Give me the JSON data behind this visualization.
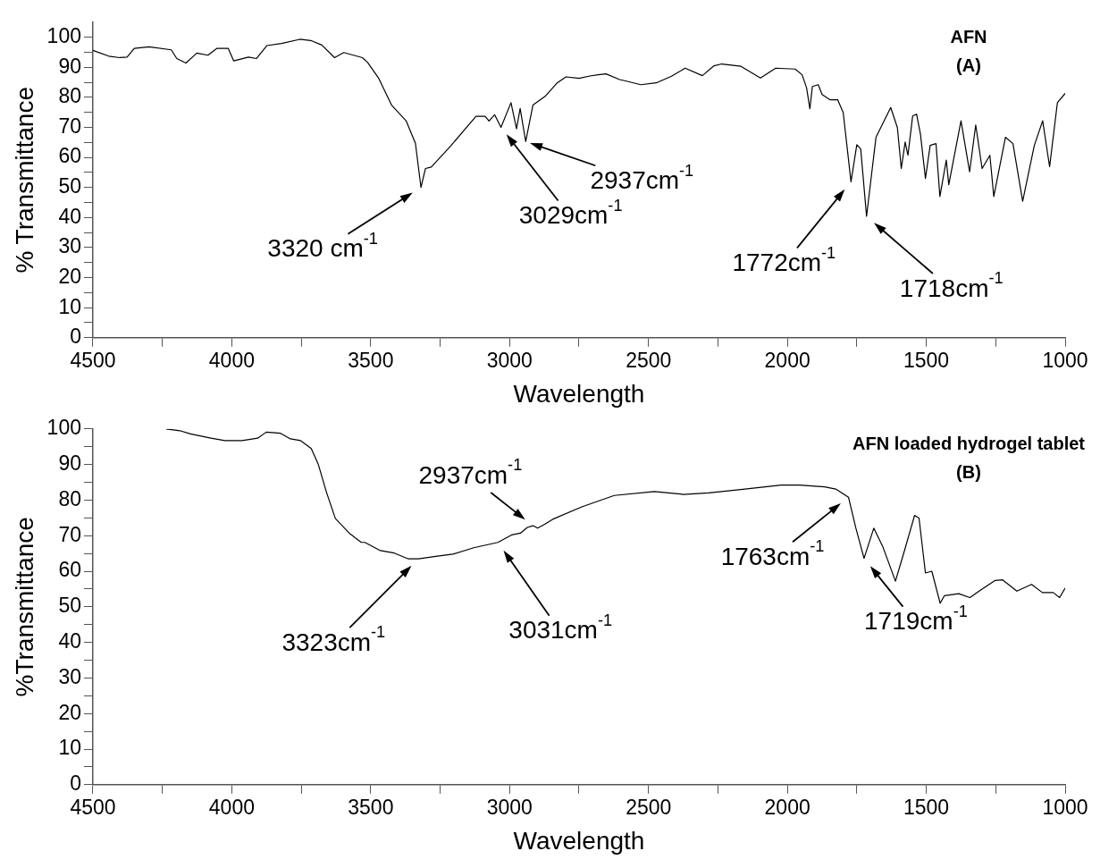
{
  "chart_data": [
    {
      "type": "line",
      "title": "AFN",
      "subtitle": "(A)",
      "xlabel": "Wavelength",
      "ylabel": "% Transmittance",
      "marker": "none",
      "line_style": "solid",
      "grid": false,
      "xlim": [
        4500,
        1000
      ],
      "xticks": [
        4500,
        {
          "value": 4250,
          "label": null
        },
        4000,
        {
          "value": 3750,
          "label": null
        },
        3500,
        {
          "value": 3250,
          "label": null
        },
        3000,
        {
          "value": 2750,
          "label": null
        },
        2500,
        {
          "value": 2250,
          "label": null
        },
        2000,
        {
          "value": 1750,
          "label": null
        },
        1500,
        {
          "value": 1250,
          "label": null
        },
        1000
      ],
      "ylim": [
        0,
        105
      ],
      "yticks": [
        0,
        {
          "value": 5,
          "label": null
        },
        10,
        {
          "value": 15,
          "label": null
        },
        20,
        {
          "value": 25,
          "label": null
        },
        30,
        {
          "value": 35,
          "label": null
        },
        40,
        {
          "value": 45,
          "label": null
        },
        50,
        {
          "value": 55,
          "label": null
        },
        60,
        {
          "value": 65,
          "label": null
        },
        70,
        {
          "value": 75,
          "label": null
        },
        80,
        {
          "value": 85,
          "label": null
        },
        90,
        {
          "value": 95,
          "label": null
        },
        100
      ],
      "series": [
        {
          "type": "line",
          "color": "#000000",
          "x": [
            4500,
            4443,
            4403,
            4377,
            4351,
            4298,
            4218,
            4198,
            4165,
            4126,
            4086,
            4053,
            4013,
            3993,
            3940,
            3911,
            3874,
            3821,
            3755,
            3716,
            3676,
            3630,
            3597,
            3530,
            3511,
            3471,
            3425,
            3372,
            3339,
            3319,
            3303,
            3282,
            3213,
            3121,
            3088,
            3074,
            3054,
            3031,
            2995,
            2975,
            2962,
            2942,
            2916,
            2870,
            2830,
            2797,
            2750,
            2711,
            2681,
            2653,
            2604,
            2576,
            2528,
            2472,
            2417,
            2368,
            2306,
            2264,
            2236,
            2167,
            2097,
            2042,
            1972,
            1947,
            1931,
            1919,
            1910,
            1889,
            1875,
            1847,
            1819,
            1799,
            1771,
            1750,
            1736,
            1715,
            1681,
            1628,
            1604,
            1590,
            1576,
            1566,
            1549,
            1535,
            1521,
            1503,
            1486,
            1465,
            1451,
            1428,
            1419,
            1375,
            1344,
            1322,
            1299,
            1271,
            1257,
            1215,
            1188,
            1153,
            1111,
            1081,
            1056,
            1028,
            1000
          ],
          "values": [
            95.6,
            93.7,
            93.2,
            93.4,
            96.3,
            96.8,
            95.8,
            92.9,
            91.4,
            94.7,
            94.0,
            96.3,
            96.3,
            92.1,
            93.4,
            92.9,
            97.2,
            97.9,
            99.3,
            98.9,
            97.4,
            93.2,
            94.9,
            93.2,
            91.6,
            86.3,
            77.4,
            72.1,
            64.7,
            50.0,
            56.3,
            56.8,
            63.7,
            73.7,
            73.7,
            72.1,
            74.2,
            70.0,
            78.2,
            69.5,
            76.3,
            65.3,
            77.4,
            80.5,
            84.7,
            86.8,
            86.3,
            87.1,
            87.5,
            87.8,
            85.9,
            85.3,
            84.2,
            84.8,
            87.0,
            89.7,
            87.2,
            90.5,
            91.1,
            90.3,
            86.4,
            89.7,
            89.4,
            87.5,
            83.2,
            76.2,
            83.6,
            84.2,
            80.9,
            79.2,
            79.2,
            74.9,
            51.9,
            64.2,
            62.8,
            40.4,
            66.7,
            76.6,
            69.9,
            56.3,
            65.1,
            60.7,
            73.8,
            74.4,
            67.8,
            53.0,
            64.0,
            64.6,
            47.0,
            59.1,
            50.9,
            72.2,
            55.2,
            70.8,
            56.3,
            60.7,
            47.0,
            66.7,
            64.6,
            45.4,
            64.0,
            72.2,
            56.9,
            78.2,
            81.3
          ]
        }
      ],
      "annotations": [
        {
          "text": "3320 cm$^{-1}$",
          "x": 3319,
          "y": 50.0
        },
        {
          "text": "3029cm$^{-1}$",
          "x": 3031,
          "y": 70.0
        },
        {
          "text": "2937cm$^{-1}$",
          "x": 2942,
          "y": 65.3
        },
        {
          "text": "1772cm$^{-1}$",
          "x": 1771,
          "y": 51.9
        },
        {
          "text": "1718cm$^{-1}$",
          "x": 1715,
          "y": 40.4
        }
      ]
    },
    {
      "type": "line",
      "title": "AFN loaded hydrogel tablet",
      "subtitle": "(B)",
      "xlabel": "Wavelength",
      "ylabel": "%Transmittance",
      "marker": "none",
      "line_style": "solid",
      "grid": false,
      "xlim": [
        4500,
        1000
      ],
      "xticks": [
        4500,
        {
          "value": 4250,
          "label": null
        },
        4000,
        {
          "value": 3750,
          "label": null
        },
        3500,
        {
          "value": 3250,
          "label": null
        },
        3000,
        {
          "value": 2750,
          "label": null
        },
        2500,
        {
          "value": 2250,
          "label": null
        },
        2000,
        {
          "value": 1750,
          "label": null
        },
        1500,
        {
          "value": 1250,
          "label": null
        },
        1000
      ],
      "ylim": [
        0,
        100
      ],
      "yticks": [
        0,
        {
          "value": 5,
          "label": null
        },
        10,
        {
          "value": 15,
          "label": null
        },
        20,
        {
          "value": 25,
          "label": null
        },
        30,
        {
          "value": 35,
          "label": null
        },
        40,
        {
          "value": 45,
          "label": null
        },
        50,
        {
          "value": 55,
          "label": null
        },
        60,
        {
          "value": 65,
          "label": null
        },
        70,
        {
          "value": 75,
          "label": null
        },
        80,
        {
          "value": 85,
          "label": null
        },
        90,
        {
          "value": 95,
          "label": null
        },
        100
      ],
      "series": [
        {
          "type": "line",
          "color": "#000000",
          "x": [
            4236,
            4187,
            4149,
            4075,
            4025,
            3963,
            3907,
            3876,
            3826,
            3789,
            3752,
            3714,
            3689,
            3658,
            3627,
            3577,
            3534,
            3521,
            3465,
            3415,
            3366,
            3328,
            3266,
            3204,
            3129,
            3042,
            2993,
            2961,
            2936,
            2916,
            2899,
            2871,
            2845,
            2740,
            2623,
            2479,
            2375,
            2283,
            2153,
            2022,
            1957,
            1866,
            1826,
            1780,
            1754,
            1724,
            1689,
            1657,
            1611,
            1578,
            1542,
            1526,
            1503,
            1480,
            1450,
            1435,
            1383,
            1343,
            1304,
            1252,
            1226,
            1174,
            1121,
            1082,
            1043,
            1020,
            1000
          ],
          "values": [
            100,
            99.5,
            98.6,
            97.4,
            96.7,
            96.7,
            97.4,
            99.1,
            98.8,
            97.2,
            96.7,
            94.5,
            90.1,
            81.9,
            74.8,
            70.7,
            68.1,
            68.1,
            65.8,
            65.1,
            63.5,
            63.5,
            64.2,
            64.8,
            66.6,
            68.1,
            70.2,
            70.7,
            72.3,
            72.8,
            72.1,
            73.3,
            74.6,
            78.1,
            81.3,
            82.4,
            81.6,
            82.0,
            83.1,
            84.2,
            84.2,
            83.7,
            83.1,
            80.8,
            72.3,
            63.6,
            72.1,
            67.0,
            57.2,
            65.9,
            75.7,
            74.9,
            59.5,
            60.0,
            51.0,
            53.1,
            53.7,
            52.6,
            54.7,
            57.4,
            57.6,
            54.4,
            56.3,
            54.0,
            54.0,
            52.6,
            55.3
          ]
        }
      ],
      "annotations": [
        {
          "text": "2937cm$^{-1}$",
          "x": 2916,
          "y": 72.8
        },
        {
          "text": "3323cm$^{-1}$",
          "x": 3328,
          "y": 63.5
        },
        {
          "text": "3031cm$^{-1}$",
          "x": 3042,
          "y": 68.1
        },
        {
          "text": "1763cm$^{-1}$",
          "x": 1780,
          "y": 80.8
        },
        {
          "text": "1719cm$^{-1}$",
          "x": 1724,
          "y": 63.6
        }
      ]
    }
  ]
}
